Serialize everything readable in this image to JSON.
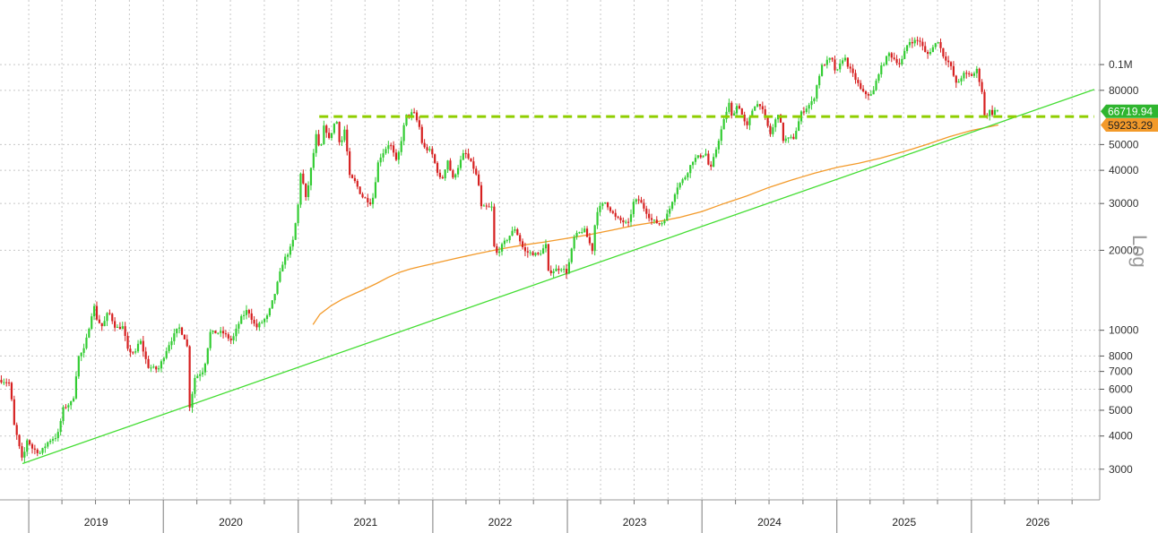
{
  "chart_data": {
    "type": "candlestick",
    "scale": "log",
    "ylim": [
      2300,
      175000
    ],
    "xlim": [
      "2018-10-15",
      "2026-12-15"
    ],
    "grid": true,
    "scale_label": "Log",
    "yticks": [
      {
        "value": 3000,
        "label": "3000"
      },
      {
        "value": 4000,
        "label": "4000"
      },
      {
        "value": 5000,
        "label": "5000"
      },
      {
        "value": 6000,
        "label": "6000"
      },
      {
        "value": 7000,
        "label": "7000"
      },
      {
        "value": 8000,
        "label": "8000"
      },
      {
        "value": 10000,
        "label": "10000"
      },
      {
        "value": 20000,
        "label": "20000"
      },
      {
        "value": 30000,
        "label": "30000"
      },
      {
        "value": 40000,
        "label": "40000"
      },
      {
        "value": 50000,
        "label": "50000"
      },
      {
        "value": 80000,
        "label": "80000"
      },
      {
        "value": 100000,
        "label": "0.1M"
      }
    ],
    "years": [
      "2019",
      "2020",
      "2021",
      "2022",
      "2023",
      "2024",
      "2025",
      "2026"
    ],
    "price_anchors": [
      [
        "2018-10-15",
        6500
      ],
      [
        "2018-11-01",
        6400
      ],
      [
        "2018-11-12",
        6300
      ],
      [
        "2018-11-20",
        4500
      ],
      [
        "2018-11-28",
        4100
      ],
      [
        "2018-12-15",
        3200
      ],
      [
        "2018-12-28",
        3900
      ],
      [
        "2019-01-10",
        3600
      ],
      [
        "2019-02-01",
        3450
      ],
      [
        "2019-02-25",
        3850
      ],
      [
        "2019-03-20",
        4000
      ],
      [
        "2019-04-05",
        5100
      ],
      [
        "2019-05-01",
        5400
      ],
      [
        "2019-05-15",
        7900
      ],
      [
        "2019-06-01",
        8500
      ],
      [
        "2019-06-26",
        12500
      ],
      [
        "2019-07-05",
        11000
      ],
      [
        "2019-07-20",
        10300
      ],
      [
        "2019-08-05",
        11800
      ],
      [
        "2019-08-25",
        10200
      ],
      [
        "2019-09-15",
        10300
      ],
      [
        "2019-09-25",
        8400
      ],
      [
        "2019-10-20",
        8200
      ],
      [
        "2019-10-28",
        9400
      ],
      [
        "2019-11-20",
        7300
      ],
      [
        "2019-12-18",
        7100
      ],
      [
        "2020-01-15",
        8800
      ],
      [
        "2020-02-12",
        10300
      ],
      [
        "2020-03-05",
        9000
      ],
      [
        "2020-03-13",
        5000
      ],
      [
        "2020-03-25",
        6600
      ],
      [
        "2020-04-20",
        7100
      ],
      [
        "2020-05-07",
        9800
      ],
      [
        "2020-06-10",
        9800
      ],
      [
        "2020-07-05",
        9100
      ],
      [
        "2020-07-28",
        11000
      ],
      [
        "2020-08-17",
        12000
      ],
      [
        "2020-09-08",
        10200
      ],
      [
        "2020-10-10",
        11300
      ],
      [
        "2020-10-28",
        13500
      ],
      [
        "2020-11-20",
        18000
      ],
      [
        "2020-12-16",
        21000
      ],
      [
        "2020-12-31",
        29000
      ],
      [
        "2021-01-08",
        40000
      ],
      [
        "2021-01-22",
        31000
      ],
      [
        "2021-02-10",
        45000
      ],
      [
        "2021-02-21",
        57000
      ],
      [
        "2021-02-28",
        45000
      ],
      [
        "2021-03-13",
        60000
      ],
      [
        "2021-03-25",
        52000
      ],
      [
        "2021-04-14",
        63000
      ],
      [
        "2021-04-25",
        49000
      ],
      [
        "2021-05-08",
        58000
      ],
      [
        "2021-05-19",
        38000
      ],
      [
        "2021-06-05",
        36000
      ],
      [
        "2021-06-22",
        32000
      ],
      [
        "2021-07-20",
        30000
      ],
      [
        "2021-08-07",
        44000
      ],
      [
        "2021-09-06",
        51000
      ],
      [
        "2021-09-25",
        42500
      ],
      [
        "2021-10-20",
        64000
      ],
      [
        "2021-11-10",
        66000
      ],
      [
        "2021-11-28",
        57000
      ],
      [
        "2021-12-04",
        49000
      ],
      [
        "2021-12-28",
        47000
      ],
      [
        "2022-01-10",
        41000
      ],
      [
        "2022-01-24",
        36000
      ],
      [
        "2022-02-10",
        44000
      ],
      [
        "2022-02-24",
        37000
      ],
      [
        "2022-03-28",
        47000
      ],
      [
        "2022-04-25",
        40000
      ],
      [
        "2022-05-08",
        34000
      ],
      [
        "2022-05-12",
        29000
      ],
      [
        "2022-06-10",
        29000
      ],
      [
        "2022-06-18",
        19000
      ],
      [
        "2022-07-10",
        21000
      ],
      [
        "2022-08-12",
        24200
      ],
      [
        "2022-09-06",
        19800
      ],
      [
        "2022-10-15",
        19200
      ],
      [
        "2022-11-05",
        21000
      ],
      [
        "2022-11-09",
        16500
      ],
      [
        "2022-12-15",
        17200
      ],
      [
        "2022-12-31",
        16500
      ],
      [
        "2023-01-20",
        22500
      ],
      [
        "2023-02-15",
        24000
      ],
      [
        "2023-03-10",
        20000
      ],
      [
        "2023-03-20",
        28000
      ],
      [
        "2023-04-14",
        30400
      ],
      [
        "2023-05-12",
        26500
      ],
      [
        "2023-06-15",
        25000
      ],
      [
        "2023-06-30",
        30400
      ],
      [
        "2023-07-14",
        31000
      ],
      [
        "2023-08-17",
        26000
      ],
      [
        "2023-09-11",
        25000
      ],
      [
        "2023-10-01",
        27500
      ],
      [
        "2023-10-24",
        34500
      ],
      [
        "2023-11-15",
        37500
      ],
      [
        "2023-12-08",
        43800
      ],
      [
        "2024-01-11",
        46500
      ],
      [
        "2024-01-23",
        39500
      ],
      [
        "2024-02-15",
        52000
      ],
      [
        "2024-03-14",
        72000
      ],
      [
        "2024-03-20",
        63000
      ],
      [
        "2024-04-08",
        71500
      ],
      [
        "2024-05-01",
        57500
      ],
      [
        "2024-05-21",
        70500
      ],
      [
        "2024-06-07",
        71000
      ],
      [
        "2024-07-05",
        54500
      ],
      [
        "2024-07-29",
        68000
      ],
      [
        "2024-08-05",
        52000
      ],
      [
        "2024-09-06",
        53000
      ],
      [
        "2024-09-27",
        66000
      ],
      [
        "2024-10-29",
        73000
      ],
      [
        "2024-11-12",
        89000
      ],
      [
        "2024-11-22",
        99000
      ],
      [
        "2024-12-17",
        106000
      ],
      [
        "2024-12-30",
        92000
      ],
      [
        "2025-01-20",
        108000
      ],
      [
        "2025-02-03",
        97000
      ],
      [
        "2025-02-25",
        86000
      ],
      [
        "2025-03-10",
        78500
      ],
      [
        "2025-04-07",
        76500
      ],
      [
        "2025-04-25",
        94000
      ],
      [
        "2025-05-22",
        110000
      ],
      [
        "2025-06-22",
        100000
      ],
      [
        "2025-07-14",
        122000
      ],
      [
        "2025-08-14",
        123000
      ],
      [
        "2025-09-01",
        108000
      ],
      [
        "2025-10-06",
        125000
      ],
      [
        "2025-10-11",
        111000
      ],
      [
        "2025-11-04",
        100000
      ],
      [
        "2025-11-21",
        84000
      ],
      [
        "2025-12-10",
        92000
      ],
      [
        "2026-01-05",
        91000
      ],
      [
        "2026-01-15",
        96000
      ],
      [
        "2026-01-31",
        78000
      ],
      [
        "2026-02-06",
        63000
      ],
      [
        "2026-02-20",
        67000
      ],
      [
        "2026-03-01",
        65000
      ],
      [
        "2026-03-08",
        68500
      ],
      [
        "2026-03-15",
        66719.94
      ]
    ],
    "ma_200w": [
      [
        "2021-02-10",
        10500
      ],
      [
        "2021-03-01",
        11500
      ],
      [
        "2021-04-01",
        12400
      ],
      [
        "2021-05-01",
        13100
      ],
      [
        "2021-06-01",
        13700
      ],
      [
        "2021-07-01",
        14300
      ],
      [
        "2021-08-01",
        15000
      ],
      [
        "2021-09-01",
        15800
      ],
      [
        "2021-10-01",
        16500
      ],
      [
        "2021-11-01",
        17000
      ],
      [
        "2021-12-01",
        17400
      ],
      [
        "2022-01-01",
        17800
      ],
      [
        "2022-03-01",
        18600
      ],
      [
        "2022-05-01",
        19400
      ],
      [
        "2022-07-01",
        20200
      ],
      [
        "2022-09-01",
        20900
      ],
      [
        "2022-11-01",
        21500
      ],
      [
        "2023-01-01",
        22200
      ],
      [
        "2023-03-01",
        22900
      ],
      [
        "2023-05-01",
        23800
      ],
      [
        "2023-07-01",
        24800
      ],
      [
        "2023-09-01",
        25600
      ],
      [
        "2023-11-01",
        26600
      ],
      [
        "2024-01-01",
        28000
      ],
      [
        "2024-03-01",
        30000
      ],
      [
        "2024-05-01",
        32000
      ],
      [
        "2024-07-01",
        34500
      ],
      [
        "2024-09-01",
        36800
      ],
      [
        "2024-11-01",
        39000
      ],
      [
        "2025-01-01",
        41000
      ],
      [
        "2025-03-01",
        42500
      ],
      [
        "2025-05-01",
        44500
      ],
      [
        "2025-07-01",
        47000
      ],
      [
        "2025-09-01",
        50000
      ],
      [
        "2025-11-01",
        53500
      ],
      [
        "2026-01-01",
        56500
      ],
      [
        "2026-03-15",
        59233.29
      ]
    ],
    "trendline": {
      "start": [
        "2018-12-15",
        3150
      ],
      "end": [
        "2026-11-30",
        80600
      ]
    },
    "support_level": {
      "value": 63700,
      "from": "2021-02-27",
      "to": "2026-11-30"
    },
    "last_price": {
      "value": 66719.94,
      "label": "66719.94",
      "color": "#2fb52f"
    },
    "ma_value": {
      "value": 59233.29,
      "label": "59233.29",
      "color": "#f39a2a"
    },
    "colors": {
      "up": "#33cc33",
      "down": "#d62020",
      "trendline": "#44dd33",
      "moving_average": "#f39a2a",
      "support": "#8fce00",
      "grid": "#c8c8c8"
    }
  }
}
